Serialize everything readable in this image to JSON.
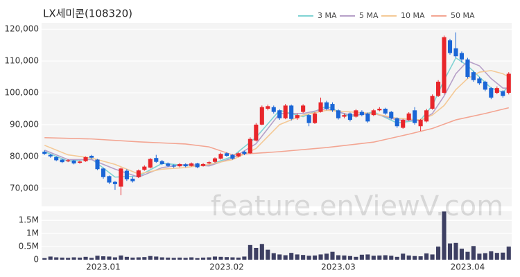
{
  "chart_data": {
    "type": "candlestick",
    "title": "LX세미콘(108320)",
    "watermark": "feature.enViewV.com",
    "up_color": "#e8262b",
    "down_color": "#1a66d6",
    "grid": true,
    "categories": [
      null,
      null,
      null,
      null,
      null,
      null,
      null,
      null,
      null,
      null,
      "2023.01",
      null,
      null,
      null,
      null,
      null,
      null,
      null,
      null,
      null,
      null,
      null,
      null,
      null,
      null,
      null,
      null,
      null,
      null,
      null,
      null,
      "2023.02",
      null,
      null,
      null,
      null,
      null,
      null,
      null,
      null,
      null,
      null,
      null,
      null,
      null,
      null,
      null,
      null,
      null,
      null,
      "2023.03",
      null,
      null,
      null,
      null,
      null,
      null,
      null,
      null,
      null,
      null,
      null,
      null,
      null,
      null,
      null,
      null,
      null,
      null,
      null,
      null,
      null,
      "2023.04",
      null,
      null,
      null,
      null,
      null,
      null,
      null
    ],
    "open": [
      81500,
      80500,
      79800,
      79000,
      78500,
      78700,
      78000,
      78500,
      80200,
      79000,
      76200,
      73800,
      72000,
      70500,
      75500,
      73000,
      73500,
      75800,
      76500,
      79500,
      78500,
      77800,
      77200,
      76900,
      77500,
      77000,
      77800,
      77000,
      77800,
      78300,
      79300,
      81000,
      80500,
      80000,
      81500,
      81000,
      85000,
      90000,
      95000,
      95500,
      94500,
      92000,
      96000,
      92000,
      94000,
      93000,
      90500,
      94000,
      97000,
      96500,
      94500,
      92500,
      93500,
      92500,
      94000,
      93500,
      93000,
      94500,
      95000,
      94000,
      92000,
      89000,
      91500,
      94500,
      89500,
      91000,
      95000,
      99000,
      100000,
      116500,
      114000,
      112500,
      110500,
      106500,
      104500,
      103500,
      101500,
      100000,
      100500,
      100000
    ],
    "high": [
      81900,
      80800,
      80000,
      79300,
      79100,
      78900,
      78700,
      80000,
      80500,
      79200,
      76500,
      74000,
      72300,
      76500,
      76000,
      73600,
      75900,
      77200,
      79500,
      80500,
      78900,
      78100,
      77500,
      77900,
      77800,
      78100,
      78000,
      77900,
      78600,
      79700,
      81200,
      81300,
      80700,
      81300,
      81800,
      86000,
      90500,
      96000,
      96300,
      96000,
      94800,
      96500,
      96300,
      93500,
      96400,
      93300,
      93900,
      98500,
      97500,
      97000,
      94800,
      93500,
      93800,
      94900,
      94500,
      93800,
      94900,
      95500,
      95300,
      94300,
      92300,
      91800,
      93900,
      95500,
      91800,
      95000,
      99500,
      104000,
      118000,
      117000,
      119000,
      113000,
      111000,
      107000,
      105000,
      103800,
      101800,
      102000,
      100800,
      106500
    ],
    "low": [
      80500,
      79600,
      78500,
      77900,
      78200,
      77500,
      77700,
      78300,
      79300,
      75700,
      73000,
      71300,
      69500,
      67800,
      72300,
      71800,
      73200,
      75500,
      76200,
      78000,
      77300,
      76700,
      76400,
      76600,
      76600,
      76800,
      76300,
      76800,
      77500,
      78000,
      79000,
      79900,
      79000,
      79700,
      80400,
      80800,
      84700,
      89800,
      94500,
      93500,
      91500,
      91700,
      91300,
      91500,
      93700,
      89500,
      90200,
      93800,
      94500,
      94000,
      91600,
      92000,
      91000,
      92200,
      92600,
      90600,
      92700,
      94200,
      93100,
      91600,
      89000,
      88700,
      91200,
      90000,
      88000,
      90700,
      94700,
      98700,
      99500,
      112000,
      111000,
      109500,
      104500,
      103500,
      102500,
      100500,
      98000,
      99600,
      98500,
      99500
    ],
    "close": [
      80800,
      80000,
      78800,
      78200,
      78800,
      77800,
      78400,
      79800,
      79600,
      76000,
      73500,
      71800,
      71300,
      76200,
      72800,
      72200,
      75600,
      76800,
      79200,
      78300,
      77600,
      77000,
      76800,
      77600,
      76900,
      77800,
      76600,
      77600,
      78200,
      79400,
      80800,
      80200,
      79300,
      81000,
      80800,
      85500,
      90000,
      95500,
      95800,
      94000,
      92000,
      96000,
      91800,
      93000,
      96000,
      90500,
      93500,
      97000,
      95000,
      94500,
      92000,
      93000,
      91500,
      94500,
      93000,
      91000,
      94500,
      95000,
      93500,
      92000,
      89500,
      91500,
      93500,
      90500,
      91500,
      94500,
      99000,
      103500,
      117500,
      112500,
      111500,
      110500,
      105000,
      104000,
      103000,
      101000,
      98500,
      101500,
      99000,
      106000
    ],
    "ylim": [
      64300,
      122000
    ],
    "yticks": [
      {
        "value": 70000,
        "label": "70,000"
      },
      {
        "value": 80000,
        "label": "80,000"
      },
      {
        "value": 90000,
        "label": "90,000"
      },
      {
        "value": 100000,
        "label": "100,000"
      },
      {
        "value": 110000,
        "label": "110,000"
      },
      {
        "value": 120000,
        "label": "120,000"
      }
    ],
    "series": [
      {
        "name": "3 MA",
        "color": "#7fd3d3",
        "x": [
          0,
          4,
          8,
          12,
          16,
          20,
          24,
          28,
          32,
          36,
          40,
          44,
          48,
          52,
          56,
          60,
          64,
          66,
          68,
          70,
          72,
          74,
          76,
          78,
          79
        ],
        "values": [
          81500,
          78500,
          79200,
          73500,
          73800,
          77800,
          77200,
          77300,
          80000,
          86000,
          94500,
          92500,
          95800,
          92500,
          94000,
          90500,
          91500,
          96000,
          104000,
          111000,
          108500,
          105000,
          101500,
          100200,
          102000
        ]
      },
      {
        "name": "5 MA",
        "color": "#b6a0c8",
        "x": [
          0,
          4,
          8,
          12,
          16,
          20,
          24,
          28,
          32,
          36,
          40,
          44,
          48,
          52,
          56,
          60,
          64,
          66,
          68,
          70,
          72,
          74,
          76,
          78,
          79
        ],
        "values": [
          82000,
          79000,
          79000,
          76000,
          73500,
          76500,
          77500,
          77000,
          79500,
          84000,
          93500,
          93500,
          95000,
          93000,
          93500,
          91500,
          91200,
          93500,
          99000,
          106000,
          110000,
          108500,
          104500,
          101500,
          101500
        ]
      },
      {
        "name": "10 MA",
        "color": "#f4c996",
        "x": [
          0,
          4,
          8,
          12,
          16,
          20,
          24,
          28,
          32,
          36,
          40,
          44,
          48,
          52,
          56,
          60,
          64,
          66,
          68,
          70,
          72,
          74,
          76,
          78,
          79
        ],
        "values": [
          83500,
          80500,
          79500,
          77500,
          74500,
          76000,
          76500,
          77500,
          79000,
          82500,
          90000,
          93000,
          94500,
          94000,
          93500,
          92000,
          91500,
          93000,
          96000,
          101000,
          104500,
          106500,
          107000,
          106000,
          105000
        ]
      },
      {
        "name": "50 MA",
        "color": "#f3a592",
        "x": [
          0,
          8,
          16,
          24,
          28,
          32,
          40,
          48,
          56,
          62,
          66,
          70,
          75,
          79
        ],
        "values": [
          85900,
          85500,
          84600,
          83900,
          83000,
          80500,
          81500,
          82800,
          84500,
          87000,
          88800,
          91500,
          93500,
          95300
        ]
      }
    ],
    "volume": {
      "color": "#3d3f62",
      "ylim": [
        0,
        1850000
      ],
      "yticks": [
        0,
        {
          "value": 500000,
          "label": "0.5M"
        },
        {
          "value": 1000000,
          "label": "1M"
        },
        {
          "value": 1500000,
          "label": "1.5M"
        }
      ],
      "values": [
        60000,
        120000,
        90000,
        80000,
        70000,
        90000,
        80000,
        110000,
        70000,
        150000,
        130000,
        120000,
        90000,
        160000,
        110000,
        80000,
        90000,
        100000,
        140000,
        120000,
        90000,
        80000,
        70000,
        80000,
        70000,
        90000,
        60000,
        80000,
        90000,
        120000,
        110000,
        100000,
        90000,
        80000,
        120000,
        560000,
        450000,
        600000,
        380000,
        250000,
        200000,
        170000,
        260000,
        200000,
        180000,
        150000,
        160000,
        200000,
        230000,
        300000,
        170000,
        160000,
        140000,
        110000,
        190000,
        200000,
        150000,
        160000,
        170000,
        150000,
        110000,
        230000,
        160000,
        140000,
        130000,
        240000,
        200000,
        500000,
        1840000,
        620000,
        640000,
        420000,
        300000,
        520000,
        230000,
        250000,
        320000,
        260000,
        270000,
        500000
      ]
    }
  }
}
